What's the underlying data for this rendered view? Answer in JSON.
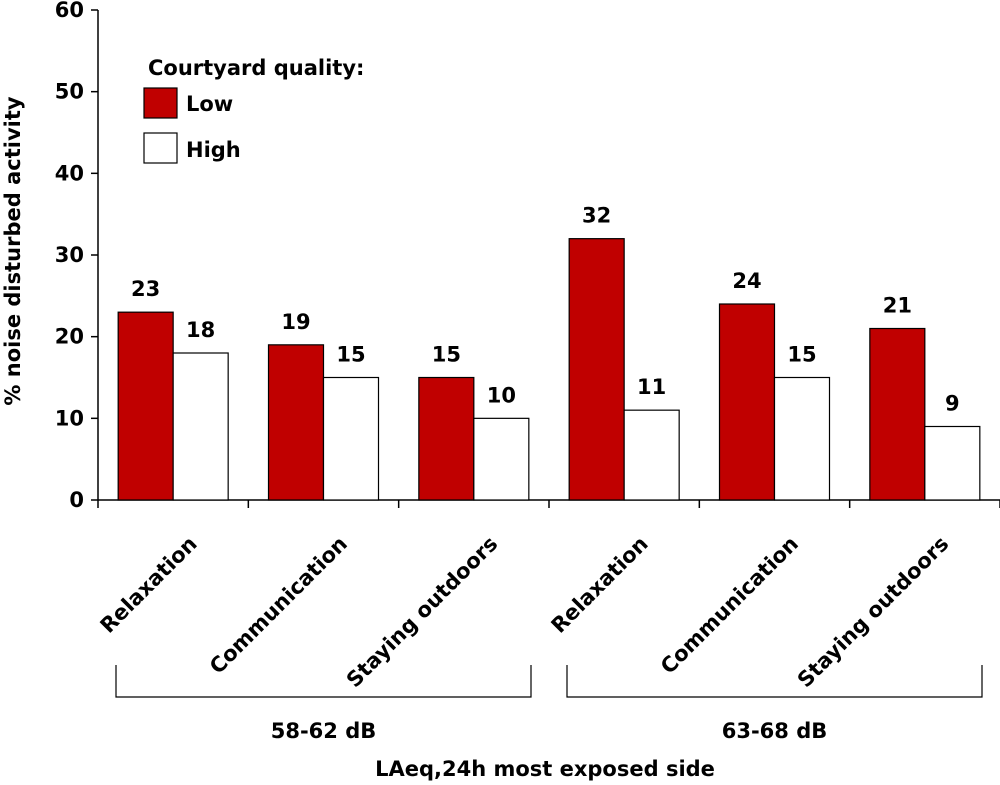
{
  "chart_data": {
    "type": "bar",
    "title": "",
    "ylabel": "% noise disturbed activity",
    "xlabel": "LAeq,24h most exposed side",
    "ylim": [
      0,
      60
    ],
    "yticks": [
      0,
      10,
      20,
      30,
      40,
      50,
      60
    ],
    "grid": false,
    "categories": [
      "Relaxation",
      "Communication",
      "Staying outdoors",
      "Relaxation",
      "Communication",
      "Staying outdoors"
    ],
    "groups": [
      {
        "label": "58-62 dB",
        "category_indices": [
          0,
          1,
          2
        ]
      },
      {
        "label": "63-68 dB",
        "category_indices": [
          3,
          4,
          5
        ]
      }
    ],
    "series": [
      {
        "name": "Low",
        "color": "#c00000",
        "values": [
          23,
          19,
          15,
          32,
          24,
          21
        ]
      },
      {
        "name": "High",
        "color": "#ffffff",
        "values": [
          18,
          15,
          10,
          11,
          15,
          9
        ]
      }
    ],
    "legend": {
      "title": "Courtyard quality:",
      "placement": "top-left"
    }
  }
}
